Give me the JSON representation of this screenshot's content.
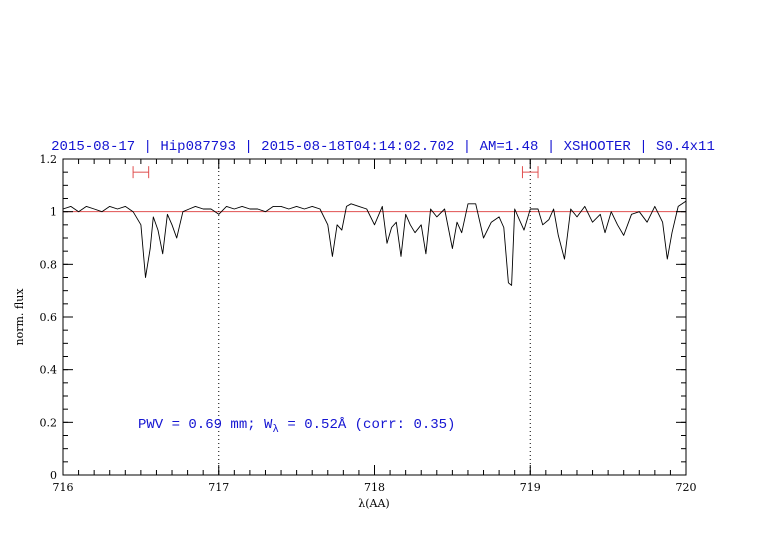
{
  "chart_data": {
    "type": "line",
    "title": "2015-08-17 | Hip087793 | 2015-08-18T04:14:02.702 | AM=1.48 | XSHOOTER | S0.4x11",
    "xlabel": "λ(AA)",
    "ylabel": "norm. flux",
    "xlim": [
      716,
      720
    ],
    "ylim": [
      0,
      1.2
    ],
    "x_ticks": [
      "716",
      "717",
      "718",
      "719",
      "720"
    ],
    "y_ticks": [
      "0",
      "0.2",
      "0.4",
      "0.6",
      "0.8",
      "1",
      "1.2"
    ],
    "grid": false,
    "annotation": {
      "text": "PWV = 0.69 mm; W",
      "sub": "λ",
      "rest": " = 0.52Å (corr: 0.35)"
    },
    "colors": {
      "spectrum": "#000000",
      "continuum": "#e05050",
      "markers": "#e05050",
      "text": "#1414d2"
    },
    "reference_line": {
      "y": 1.0
    },
    "vertical_lines": [
      717.0,
      719.0
    ],
    "fit_ranges": [
      {
        "x0": 716.45,
        "x1": 716.55,
        "y": 1.15
      },
      {
        "x0": 718.95,
        "x1": 719.05,
        "y": 1.15
      }
    ],
    "series": [
      {
        "x": [
          716.0,
          716.05,
          716.1,
          716.15,
          716.2,
          716.25,
          716.3,
          716.35,
          716.4,
          716.45,
          716.5,
          716.53,
          716.56,
          716.58,
          716.61,
          716.64,
          716.67,
          716.7,
          716.73,
          716.77,
          716.81,
          716.85,
          716.9,
          716.95,
          717.0,
          717.05,
          717.1,
          717.15,
          717.2,
          717.25,
          717.3,
          717.35,
          717.4,
          717.45,
          717.5,
          717.55,
          717.6,
          717.65,
          717.7,
          717.73,
          717.76,
          717.79,
          717.82,
          717.85,
          717.9,
          717.95,
          718.0,
          718.05,
          718.08,
          718.11,
          718.14,
          718.17,
          718.2,
          718.23,
          718.26,
          718.3,
          718.33,
          718.36,
          718.4,
          718.45,
          718.5,
          718.53,
          718.56,
          718.6,
          718.65,
          718.7,
          718.75,
          718.8,
          718.83,
          718.86,
          718.88,
          718.9,
          718.93,
          718.96,
          719.0,
          719.05,
          719.08,
          719.12,
          719.15,
          719.18,
          719.22,
          719.26,
          719.3,
          719.35,
          719.4,
          719.45,
          719.48,
          719.52,
          719.56,
          719.6,
          719.65,
          719.7,
          719.75,
          719.8,
          719.85,
          719.88,
          719.91,
          719.95,
          720.0
        ],
        "y": [
          1.01,
          1.02,
          1.0,
          1.02,
          1.01,
          1.0,
          1.02,
          1.01,
          1.02,
          1.0,
          0.95,
          0.75,
          0.86,
          0.98,
          0.93,
          0.84,
          0.99,
          0.95,
          0.9,
          1.0,
          1.01,
          1.02,
          1.01,
          1.01,
          0.99,
          1.02,
          1.01,
          1.02,
          1.01,
          1.01,
          1.0,
          1.02,
          1.02,
          1.01,
          1.02,
          1.01,
          1.02,
          1.01,
          0.95,
          0.83,
          0.95,
          0.93,
          1.02,
          1.03,
          1.02,
          1.01,
          0.95,
          1.02,
          0.88,
          0.94,
          0.96,
          0.83,
          0.99,
          0.95,
          0.92,
          0.95,
          0.84,
          1.01,
          0.98,
          1.01,
          0.86,
          0.96,
          0.92,
          1.03,
          1.03,
          0.9,
          0.96,
          0.98,
          0.94,
          0.73,
          0.72,
          1.01,
          0.97,
          0.93,
          1.01,
          1.01,
          0.95,
          0.97,
          1.01,
          0.91,
          0.82,
          1.01,
          0.98,
          1.02,
          0.96,
          0.99,
          0.92,
          1.0,
          0.95,
          0.91,
          0.99,
          1.0,
          0.96,
          1.02,
          0.96,
          0.82,
          0.92,
          1.02,
          1.04
        ]
      }
    ]
  }
}
